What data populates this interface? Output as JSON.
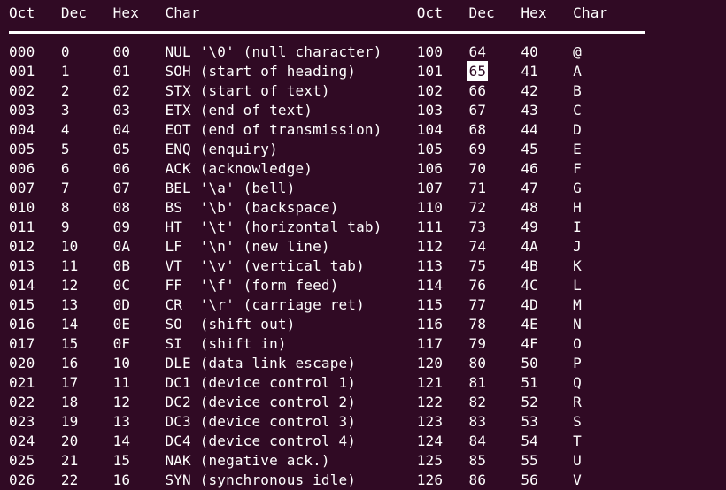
{
  "terminal": {
    "bg_color": "#300a24",
    "fg_color": "#ffffff",
    "highlight_bg_color": "#ffffff",
    "highlight_fg_color": "#300a24",
    "search_match": "65"
  },
  "table": {
    "headers": [
      "Oct",
      "Dec",
      "Hex",
      "Char"
    ],
    "left_rows": [
      {
        "oct": "000",
        "dec": "0",
        "hex": "00",
        "desc": "NUL '\\0' (null character)"
      },
      {
        "oct": "001",
        "dec": "1",
        "hex": "01",
        "desc": "SOH (start of heading)"
      },
      {
        "oct": "002",
        "dec": "2",
        "hex": "02",
        "desc": "STX (start of text)"
      },
      {
        "oct": "003",
        "dec": "3",
        "hex": "03",
        "desc": "ETX (end of text)"
      },
      {
        "oct": "004",
        "dec": "4",
        "hex": "04",
        "desc": "EOT (end of transmission)"
      },
      {
        "oct": "005",
        "dec": "5",
        "hex": "05",
        "desc": "ENQ (enquiry)"
      },
      {
        "oct": "006",
        "dec": "6",
        "hex": "06",
        "desc": "ACK (acknowledge)"
      },
      {
        "oct": "007",
        "dec": "7",
        "hex": "07",
        "desc": "BEL '\\a' (bell)"
      },
      {
        "oct": "010",
        "dec": "8",
        "hex": "08",
        "desc": "BS  '\\b' (backspace)"
      },
      {
        "oct": "011",
        "dec": "9",
        "hex": "09",
        "desc": "HT  '\\t' (horizontal tab)"
      },
      {
        "oct": "012",
        "dec": "10",
        "hex": "0A",
        "desc": "LF  '\\n' (new line)"
      },
      {
        "oct": "013",
        "dec": "11",
        "hex": "0B",
        "desc": "VT  '\\v' (vertical tab)"
      },
      {
        "oct": "014",
        "dec": "12",
        "hex": "0C",
        "desc": "FF  '\\f' (form feed)"
      },
      {
        "oct": "015",
        "dec": "13",
        "hex": "0D",
        "desc": "CR  '\\r' (carriage ret)"
      },
      {
        "oct": "016",
        "dec": "14",
        "hex": "0E",
        "desc": "SO  (shift out)"
      },
      {
        "oct": "017",
        "dec": "15",
        "hex": "0F",
        "desc": "SI  (shift in)"
      },
      {
        "oct": "020",
        "dec": "16",
        "hex": "10",
        "desc": "DLE (data link escape)"
      },
      {
        "oct": "021",
        "dec": "17",
        "hex": "11",
        "desc": "DC1 (device control 1)"
      },
      {
        "oct": "022",
        "dec": "18",
        "hex": "12",
        "desc": "DC2 (device control 2)"
      },
      {
        "oct": "023",
        "dec": "19",
        "hex": "13",
        "desc": "DC3 (device control 3)"
      },
      {
        "oct": "024",
        "dec": "20",
        "hex": "14",
        "desc": "DC4 (device control 4)"
      },
      {
        "oct": "025",
        "dec": "21",
        "hex": "15",
        "desc": "NAK (negative ack.)"
      },
      {
        "oct": "026",
        "dec": "22",
        "hex": "16",
        "desc": "SYN (synchronous idle)"
      }
    ],
    "right_rows": [
      {
        "oct": "100",
        "dec": "64",
        "hex": "40",
        "chr": "@"
      },
      {
        "oct": "101",
        "dec": "65",
        "hex": "41",
        "chr": "A"
      },
      {
        "oct": "102",
        "dec": "66",
        "hex": "42",
        "chr": "B"
      },
      {
        "oct": "103",
        "dec": "67",
        "hex": "43",
        "chr": "C"
      },
      {
        "oct": "104",
        "dec": "68",
        "hex": "44",
        "chr": "D"
      },
      {
        "oct": "105",
        "dec": "69",
        "hex": "45",
        "chr": "E"
      },
      {
        "oct": "106",
        "dec": "70",
        "hex": "46",
        "chr": "F"
      },
      {
        "oct": "107",
        "dec": "71",
        "hex": "47",
        "chr": "G"
      },
      {
        "oct": "110",
        "dec": "72",
        "hex": "48",
        "chr": "H"
      },
      {
        "oct": "111",
        "dec": "73",
        "hex": "49",
        "chr": "I"
      },
      {
        "oct": "112",
        "dec": "74",
        "hex": "4A",
        "chr": "J"
      },
      {
        "oct": "113",
        "dec": "75",
        "hex": "4B",
        "chr": "K"
      },
      {
        "oct": "114",
        "dec": "76",
        "hex": "4C",
        "chr": "L"
      },
      {
        "oct": "115",
        "dec": "77",
        "hex": "4D",
        "chr": "M"
      },
      {
        "oct": "116",
        "dec": "78",
        "hex": "4E",
        "chr": "N"
      },
      {
        "oct": "117",
        "dec": "79",
        "hex": "4F",
        "chr": "O"
      },
      {
        "oct": "120",
        "dec": "80",
        "hex": "50",
        "chr": "P"
      },
      {
        "oct": "121",
        "dec": "81",
        "hex": "51",
        "chr": "Q"
      },
      {
        "oct": "122",
        "dec": "82",
        "hex": "52",
        "chr": "R"
      },
      {
        "oct": "123",
        "dec": "83",
        "hex": "53",
        "chr": "S"
      },
      {
        "oct": "124",
        "dec": "84",
        "hex": "54",
        "chr": "T"
      },
      {
        "oct": "125",
        "dec": "85",
        "hex": "55",
        "chr": "U"
      },
      {
        "oct": "126",
        "dec": "86",
        "hex": "56",
        "chr": "V"
      }
    ]
  }
}
